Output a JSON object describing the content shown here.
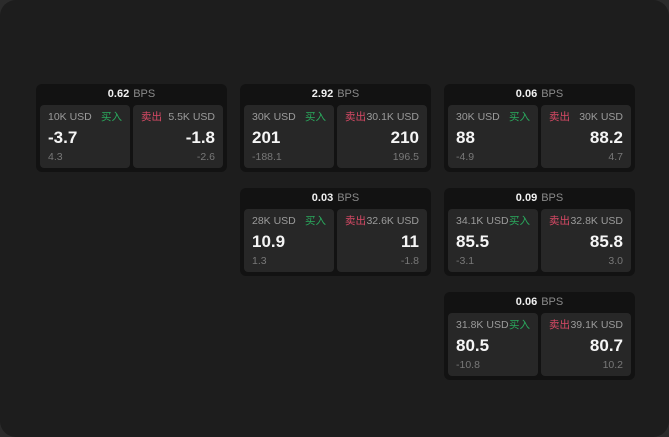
{
  "labels": {
    "bps_unit": "BPS",
    "buy": "买入",
    "sell": "卖出"
  },
  "colors": {
    "buy": "#2aab5e",
    "sell": "#d94a66",
    "window_bg": "#1d1d1d",
    "card_bg": "#121212",
    "tile_bg": "#272727"
  },
  "cards": [
    {
      "bps": "0.62",
      "buy": {
        "amount": "10K USD",
        "price": "-3.7",
        "delta": "4.3"
      },
      "sell": {
        "amount": "5.5K USD",
        "price": "-1.8",
        "delta": "-2.6"
      }
    },
    {
      "bps": "2.92",
      "buy": {
        "amount": "30K USD",
        "price": "201",
        "delta": "-188.1"
      },
      "sell": {
        "amount": "30.1K USD",
        "price": "210",
        "delta": "196.5"
      }
    },
    {
      "bps": "0.06",
      "buy": {
        "amount": "30K USD",
        "price": "88",
        "delta": "-4.9"
      },
      "sell": {
        "amount": "30K USD",
        "price": "88.2",
        "delta": "4.7"
      }
    },
    {
      "bps": "0.03",
      "buy": {
        "amount": "28K USD",
        "price": "10.9",
        "delta": "1.3"
      },
      "sell": {
        "amount": "32.6K USD",
        "price": "11",
        "delta": "-1.8"
      }
    },
    {
      "bps": "0.09",
      "buy": {
        "amount": "34.1K USD",
        "price": "85.5",
        "delta": "-3.1"
      },
      "sell": {
        "amount": "32.8K USD",
        "price": "85.8",
        "delta": "3.0"
      }
    },
    {
      "bps": "0.06",
      "buy": {
        "amount": "31.8K USD",
        "price": "80.5",
        "delta": "-10.8"
      },
      "sell": {
        "amount": "39.1K USD",
        "price": "80.7",
        "delta": "10.2"
      }
    }
  ]
}
